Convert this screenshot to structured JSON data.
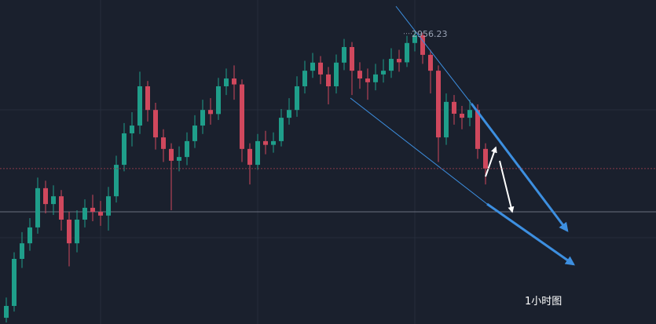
{
  "chart_data": {
    "type": "candlestick",
    "open": [
      2864.0,
      2867.8,
      2882.9,
      2887.9,
      2893.0,
      2905.6,
      2900.5,
      2903.0,
      2895.5,
      2887.9,
      2895.5,
      2899.3,
      2898.0,
      2896.8,
      2903.0,
      2913.1,
      2923.2,
      2925.7,
      2938.3,
      2930.7,
      2921.9,
      2918.2,
      2914.4,
      2915.6,
      2920.7,
      2925.7,
      2930.7,
      2929.4,
      2938.3,
      2940.8,
      2938.9,
      2918.2,
      2913.1,
      2920.7,
      2919.5,
      2920.7,
      2928.2,
      2930.7,
      2938.3,
      2943.3,
      2945.9,
      2942.1,
      2938.3,
      2945.9,
      2950.9,
      2943.3,
      2940.8,
      2939.6,
      2942.1,
      2943.3,
      2947.1,
      2946.0,
      2952.2,
      2954.7,
      2948.4,
      2943.3,
      2921.9,
      2933.3,
      2929.5,
      2928.2,
      2930.7,
      2918.2
    ],
    "high": [
      2870.5,
      2885.0,
      2891.5,
      2896.0,
      2909.0,
      2908.0,
      2906.5,
      2905.0,
      2898.0,
      2898.5,
      2902.0,
      2903.5,
      2901.5,
      2906.0,
      2916.0,
      2926.5,
      2930.0,
      2943.0,
      2940.0,
      2933.0,
      2924.5,
      2920.0,
      2919.0,
      2923.5,
      2929.0,
      2934.0,
      2934.5,
      2941.0,
      2944.0,
      2945.0,
      2940.5,
      2920.0,
      2923.0,
      2924.0,
      2923.5,
      2931.0,
      2934.5,
      2941.5,
      2946.5,
      2949.0,
      2948.0,
      2944.5,
      2948.5,
      2953.5,
      2952.5,
      2946.0,
      2944.0,
      2945.5,
      2947.0,
      2950.5,
      2950.0,
      2954.5,
      2956.23,
      2955.5,
      2950.0,
      2945.0,
      2936.0,
      2935.5,
      2932.0,
      2934.0,
      2932.5,
      2920.0
    ],
    "low": [
      2862.5,
      2866.0,
      2880.0,
      2885.5,
      2891.0,
      2897.5,
      2897.0,
      2892.0,
      2880.5,
      2885.0,
      2893.0,
      2895.0,
      2893.5,
      2892.0,
      2901.0,
      2911.0,
      2919.0,
      2923.0,
      2927.0,
      2918.0,
      2914.0,
      2898.5,
      2911.0,
      2913.0,
      2918.5,
      2923.0,
      2926.0,
      2927.5,
      2935.5,
      2934.0,
      2914.0,
      2906.8,
      2911.5,
      2916.5,
      2917.0,
      2919.0,
      2926.0,
      2928.5,
      2936.0,
      2941.0,
      2939.0,
      2932.5,
      2936.0,
      2943.5,
      2935.5,
      2937.5,
      2934.0,
      2937.0,
      2939.5,
      2941.0,
      2943.0,
      2944.5,
      2949.5,
      2945.5,
      2936.0,
      2914.0,
      2919.5,
      2926.0,
      2924.5,
      2925.5,
      2915.0,
      2906.8
    ],
    "close": [
      2867.8,
      2882.9,
      2887.9,
      2893.0,
      2905.6,
      2900.5,
      2903.0,
      2895.5,
      2887.9,
      2895.5,
      2899.3,
      2898.0,
      2896.8,
      2903.0,
      2913.1,
      2923.2,
      2925.7,
      2938.3,
      2930.7,
      2921.9,
      2918.2,
      2914.4,
      2915.6,
      2920.7,
      2925.7,
      2930.7,
      2929.4,
      2938.3,
      2940.8,
      2938.9,
      2918.2,
      2913.1,
      2920.7,
      2919.5,
      2920.7,
      2928.2,
      2930.7,
      2938.3,
      2943.3,
      2945.9,
      2942.1,
      2938.3,
      2945.9,
      2950.9,
      2943.3,
      2940.8,
      2939.6,
      2942.1,
      2943.3,
      2947.1,
      2946.0,
      2952.2,
      2954.7,
      2948.4,
      2943.3,
      2921.9,
      2933.3,
      2929.5,
      2928.2,
      2930.7,
      2918.2,
      2911.9
    ],
    "ylim": [
      2862,
      2966
    ],
    "up_color": "#1f9e8a",
    "down_color": "#d0485d",
    "peak_index": 52,
    "timeframe": "1小时图"
  }
}
